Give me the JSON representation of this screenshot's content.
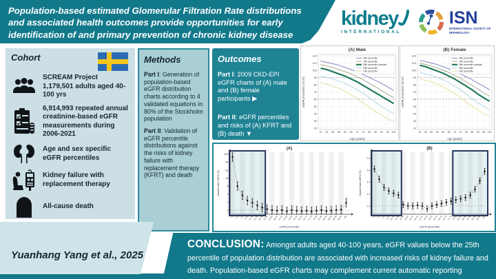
{
  "banner": {
    "title": "Population-based estimated Glomerular Filtration Rate distributions and associated health outcomes provide opportunities for early identification of and primary prevention of chronic kidney disease"
  },
  "logos": {
    "kidney_international": {
      "word": "kidney",
      "sub": "INTERNATIONAL"
    },
    "isn": {
      "name": "ISN",
      "sub": "INTERNATIONAL SOCIETY OF NEPHROLOGY"
    }
  },
  "cohort": {
    "header": "Cohort",
    "flag": "sweden-flag",
    "items": [
      {
        "icon": "people-group-icon",
        "lead": "SCREAM Project",
        "text": "1,179,501 adults aged 40-100 yrs"
      },
      {
        "icon": "clipboard-checklist-icon",
        "lead": "",
        "text": "6,914,993 repeated annual creatinine-based eGFR measurements during 2006-2021"
      },
      {
        "icon": "kidneys-icon",
        "lead": "",
        "text": "Age and sex specific eGFR percentiles"
      },
      {
        "icon": "dialysis-icon",
        "lead": "",
        "text": "Kidney failure with replacement therapy"
      },
      {
        "icon": "tombstone-icon",
        "lead": "",
        "text": "All-cause death"
      }
    ]
  },
  "methods": {
    "header": "Methods",
    "parts": [
      {
        "lead": "Part I",
        "text": ": Generation of population-based eGFR distribution charts according to 4 validated equations in 80% of the Stockholm population"
      },
      {
        "lead": "Part II",
        "text": ": Validation of eGFR percentile distributions against the risks of kidney failure with replacement therapy (KFRT) and death"
      }
    ]
  },
  "outcomes": {
    "header": "Outcomes",
    "parts": [
      {
        "lead": "Part I",
        "text": ": 2009 CKD-EPI eGFR charts of (A) male and (B) female participants ▶"
      },
      {
        "lead": "Part II",
        "text": ": eGFR percentiles and risks of (A) KFRT and (B) death ▼"
      }
    ]
  },
  "conclusion": {
    "label": "CONCLUSION:",
    "text": " Amongst adults aged 40-100 years, eGFR values below the 25th percentile of population distribution are associated with increased risks of kidney failure and death. Population-based eGFR charts may complement current automatic reporting systems and provide opportunities for early identification and primary prevention of CKD."
  },
  "citation": "Yuanhang Yang et al., 2025",
  "colors": {
    "teal": "#12798b",
    "outcomes_teal": "#1f8394",
    "methods_fill": "#a9ced5",
    "cohort_fill": "#cbdfe5",
    "highlight_navy": "#22365e",
    "kidney_logo_teal": "#0d7d8d",
    "isn_blue": "#24409a",
    "sweden_blue": "#2b6bb4",
    "sweden_yellow": "#f5c51d"
  },
  "chart_data": [
    {
      "id": "male",
      "type": "line",
      "title": "(A) Male",
      "xlabel": "Age (years)",
      "ylabel": "eGFR (mL/min/1.73 m²)",
      "x": [
        40,
        45,
        50,
        55,
        60,
        65,
        70,
        75,
        80,
        85,
        90,
        95,
        100
      ],
      "xticks": [
        40,
        45,
        50,
        55,
        60,
        65,
        70,
        75,
        80,
        85,
        90,
        95,
        100
      ],
      "xlim": [
        38,
        102
      ],
      "ylim": [
        18,
        122
      ],
      "yticks": [
        20,
        30,
        40,
        50,
        60,
        70,
        80,
        90,
        100,
        110,
        120
      ],
      "ref_lines": [
        90,
        60
      ],
      "grid": true,
      "legend_position": "top-right",
      "series": [
        {
          "name": "90th percentile",
          "color": "#8a90c8",
          "width": 1.1,
          "values": [
            113,
            111,
            109,
            107,
            104,
            101,
            98,
            94,
            90,
            86,
            82,
            77,
            72
          ]
        },
        {
          "name": "75th percentile",
          "color": "#adb196",
          "width": 1.1,
          "values": [
            108,
            106,
            104,
            101,
            98,
            95,
            91,
            87,
            82,
            77,
            72,
            67,
            62
          ]
        },
        {
          "name": "50th percentile (median)",
          "color": "#20795a",
          "width": 2.2,
          "values": [
            103,
            101,
            98,
            95,
            92,
            88,
            84,
            79,
            74,
            69,
            64,
            59,
            54
          ]
        },
        {
          "name": "25th percentile",
          "color": "#b7d9e8",
          "width": 1.1,
          "values": [
            92,
            90,
            88,
            85,
            82,
            78,
            73,
            68,
            62,
            56,
            50,
            45,
            40
          ]
        },
        {
          "name": "10th percentile",
          "color": "#e7e3a6",
          "width": 1.1,
          "values": [
            83,
            81,
            78,
            75,
            71,
            66,
            61,
            55,
            49,
            43,
            38,
            33,
            29
          ]
        }
      ]
    },
    {
      "id": "female",
      "type": "line",
      "title": "(B) Female",
      "xlabel": "Age (years)",
      "ylabel": "eGFR (mL/min/1.73 m²)",
      "x": [
        40,
        45,
        50,
        55,
        60,
        65,
        70,
        75,
        80,
        85,
        90,
        95,
        100
      ],
      "xticks": [
        40,
        45,
        50,
        55,
        60,
        65,
        70,
        75,
        80,
        85,
        90,
        95,
        100
      ],
      "xlim": [
        38,
        102
      ],
      "ylim": [
        18,
        122
      ],
      "yticks": [
        20,
        30,
        40,
        50,
        60,
        70,
        80,
        90,
        100,
        110,
        120
      ],
      "ref_lines": [
        90,
        60
      ],
      "grid": true,
      "legend_position": "top-right",
      "series": [
        {
          "name": "90th percentile",
          "color": "#8a90c8",
          "width": 1.1,
          "values": [
            114,
            112,
            110,
            108,
            105,
            102,
            99,
            95,
            91,
            87,
            82,
            78,
            73
          ]
        },
        {
          "name": "75th percentile",
          "color": "#adb196",
          "width": 1.1,
          "values": [
            110,
            108,
            106,
            103,
            100,
            97,
            93,
            89,
            84,
            79,
            74,
            69,
            64
          ]
        },
        {
          "name": "50th percentile (median)",
          "color": "#20795a",
          "width": 2.2,
          "values": [
            107,
            105,
            102,
            99,
            96,
            92,
            88,
            83,
            78,
            73,
            67,
            62,
            57
          ]
        },
        {
          "name": "25th percentile",
          "color": "#b7d9e8",
          "width": 1.1,
          "values": [
            97,
            95,
            93,
            90,
            87,
            83,
            78,
            73,
            67,
            61,
            55,
            50,
            45
          ]
        },
        {
          "name": "10th percentile",
          "color": "#e7e3a6",
          "width": 1.1,
          "values": [
            88,
            86,
            84,
            81,
            77,
            73,
            68,
            62,
            56,
            50,
            45,
            40,
            36
          ]
        }
      ]
    },
    {
      "id": "kfrt",
      "type": "scatter-ci",
      "title": "(A)",
      "xlabel": "eGFR percentile",
      "ylabel": "Hazard ratio (95% CI)",
      "categories": [
        "<1",
        "1-2",
        "2-5",
        "5-10",
        "10-15",
        "15-20",
        "20-25",
        "25-30",
        "30-35",
        "35-40",
        "40-45",
        "45-50",
        "50-55",
        "55-60",
        "60-65",
        "65-70",
        "70-75",
        "75-80",
        "80-85",
        "85-90",
        "90-95",
        "95-98",
        "98-99",
        ">99"
      ],
      "values": [
        100,
        8,
        3.6,
        2.3,
        1.9,
        1.5,
        1.25,
        1.1,
        1.0,
        0.95,
        1.0,
        0.9,
        1.0,
        0.95,
        0.92,
        0.95,
        0.9,
        0.95,
        1.0,
        0.92,
        0.95,
        1.0,
        1.05,
        1.9
      ],
      "yscale": "log2",
      "ylim": [
        0.7,
        150
      ],
      "yticks": [
        1,
        2,
        4,
        8,
        16,
        32,
        64,
        128
      ],
      "ref_line": 1,
      "ci_factor": 1.45,
      "highlight_ranges": [
        [
          0,
          6
        ]
      ]
    },
    {
      "id": "death",
      "type": "scatter-ci",
      "title": "(B)",
      "xlabel": "eGFR percentile",
      "ylabel": "Hazard ratio (95% CI)",
      "categories": [
        "<1",
        "1-2",
        "2-5",
        "5-10",
        "10-15",
        "15-20",
        "20-25",
        "25-30",
        "30-35",
        "35-40",
        "40-45",
        "45-50",
        "50-55",
        "55-60",
        "60-65",
        "65-70",
        "70-75",
        "75-80",
        "80-85",
        "85-90",
        "90-95",
        "95-98",
        "98-99",
        ">99"
      ],
      "values": [
        1.62,
        1.45,
        1.31,
        1.25,
        1.21,
        1.18,
        1.02,
        1.0,
        1.0,
        1.01,
        1.0,
        0.95,
        1.0,
        1.02,
        1.04,
        1.06,
        1.08,
        1.1,
        1.12,
        1.14,
        1.18,
        1.28,
        1.42,
        1.58
      ],
      "yscale": "linear",
      "ylim": [
        0.86,
        1.9
      ],
      "yticks": [
        1.0,
        1.2,
        1.4,
        1.6,
        1.8
      ],
      "ref_line": 1,
      "ci_delta": 0.05,
      "highlight_ranges": [
        [
          0,
          5
        ],
        [
          17,
          23
        ]
      ]
    }
  ]
}
